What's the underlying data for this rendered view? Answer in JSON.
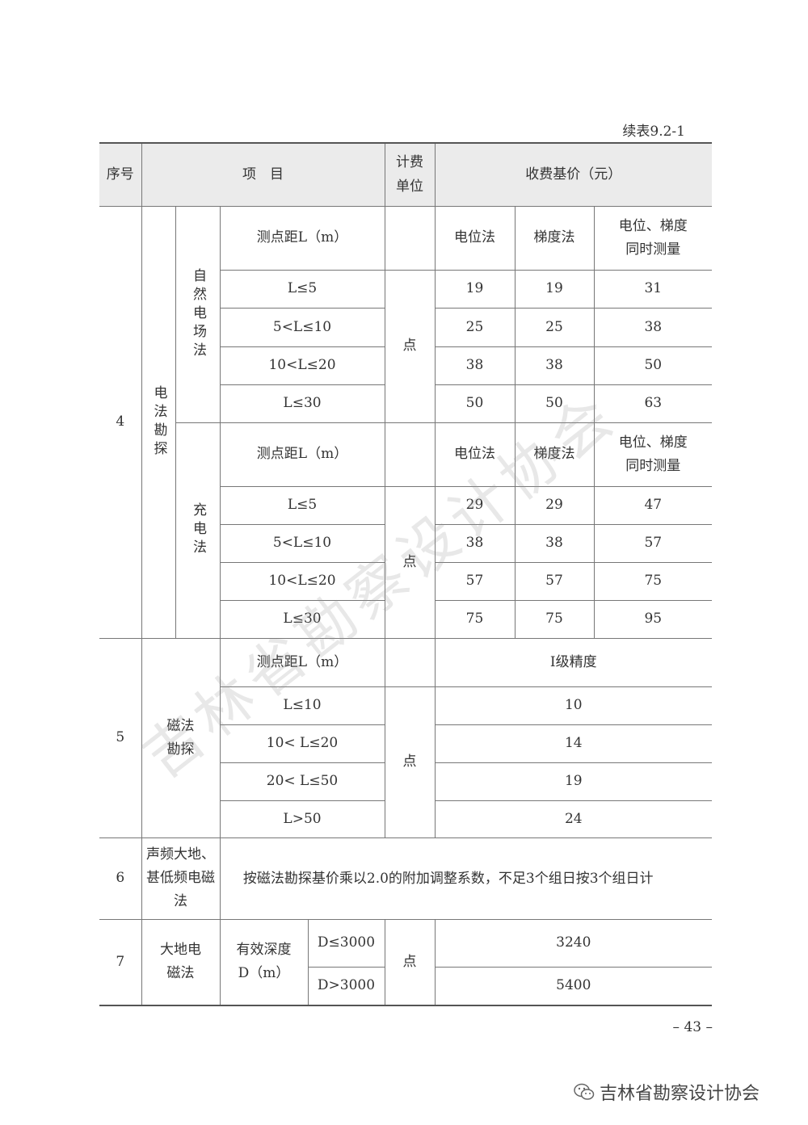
{
  "caption": "续表9.2-1",
  "header": {
    "seq": "序号",
    "item": "项　目",
    "unit": "计费单位",
    "price": "收费基价（元）"
  },
  "row4": {
    "seq": "4",
    "category": "电法勘探",
    "natural": {
      "method": "自然电场法",
      "param": "测点距L（m）",
      "cols": [
        "电位法",
        "梯度法",
        "电位、梯度同时测量"
      ],
      "unit": "点",
      "rows": [
        {
          "range": "L≤5",
          "values": [
            "19",
            "19",
            "31"
          ]
        },
        {
          "range": "5<L≤10",
          "values": [
            "25",
            "25",
            "38"
          ]
        },
        {
          "range": "10<L≤20",
          "values": [
            "38",
            "38",
            "50"
          ]
        },
        {
          "range": "L≤30",
          "values": [
            "50",
            "50",
            "63"
          ]
        }
      ]
    },
    "charge": {
      "method": "充电法",
      "param": "测点距L（m）",
      "cols": [
        "电位法",
        "梯度法",
        "电位、梯度同时测量"
      ],
      "unit": "点",
      "rows": [
        {
          "range": "L≤5",
          "values": [
            "29",
            "29",
            "47"
          ]
        },
        {
          "range": "5<L≤10",
          "values": [
            "38",
            "38",
            "57"
          ]
        },
        {
          "range": "10<L≤20",
          "values": [
            "57",
            "57",
            "75"
          ]
        },
        {
          "range": "L≤30",
          "values": [
            "75",
            "75",
            "95"
          ]
        }
      ]
    }
  },
  "row5": {
    "seq": "5",
    "category": "磁法勘探",
    "param": "测点距L（m）",
    "col": "I级精度",
    "unit": "点",
    "rows": [
      {
        "range": "L≤10",
        "value": "10"
      },
      {
        "range": "10< L≤20",
        "value": "14"
      },
      {
        "range": "20< L≤50",
        "value": "19"
      },
      {
        "range": "L>50",
        "value": "24"
      }
    ]
  },
  "row6": {
    "seq": "6",
    "category": "声频大地、甚低频电磁法",
    "text": "按磁法勘探基价乘以2.0的附加调整系数，不足3个组日按3个组日计"
  },
  "row7": {
    "seq": "7",
    "category": "大地电磁法",
    "param": "有效深度D（m）",
    "unit": "点",
    "rows": [
      {
        "range": "D≤3000",
        "value": "3240"
      },
      {
        "range": "D>3000",
        "value": "5400"
      }
    ]
  },
  "watermark": "吉林省勘察设计协会",
  "page_number": "– 43 –",
  "wechat_account": "吉林省勘察设计协会"
}
